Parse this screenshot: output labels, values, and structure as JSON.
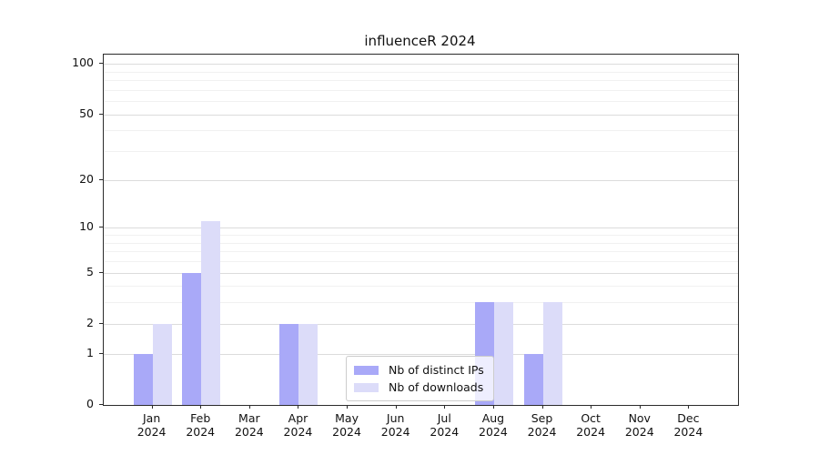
{
  "title": "influenceR 2024",
  "chart_data": {
    "type": "bar",
    "title": "influenceR 2024",
    "categories": [
      "Jan",
      "Feb",
      "Mar",
      "Apr",
      "May",
      "Jun",
      "Jul",
      "Aug",
      "Sep",
      "Oct",
      "Nov",
      "Dec"
    ],
    "year_label": "2024",
    "series": [
      {
        "name": "Nb of distinct IPs",
        "color": "#a9a9f8",
        "values": [
          1,
          5,
          0,
          2,
          0,
          0,
          0,
          3,
          1,
          0,
          0,
          0
        ]
      },
      {
        "name": "Nb of downloads",
        "color": "#dcdcf9",
        "values": [
          2,
          11,
          0,
          2,
          0,
          0,
          0,
          3,
          3,
          0,
          0,
          0
        ]
      }
    ],
    "xlabel": "",
    "ylabel": "",
    "yscale": "log1p",
    "ylim": [
      0,
      113.6
    ],
    "y_major_ticks": [
      0,
      1,
      2,
      5,
      10,
      20,
      50,
      100
    ],
    "y_minor_ticks": [
      3,
      4,
      6,
      7,
      8,
      9,
      30,
      40,
      60,
      70,
      80,
      90
    ],
    "grid": "horizontal",
    "major_grid_color": "#dcdcdc",
    "minor_grid_color": "#f1f1f1",
    "legend_position": "lower-center-inside",
    "background_color": "#ffffff",
    "spine_color": "#2b2b2b"
  }
}
